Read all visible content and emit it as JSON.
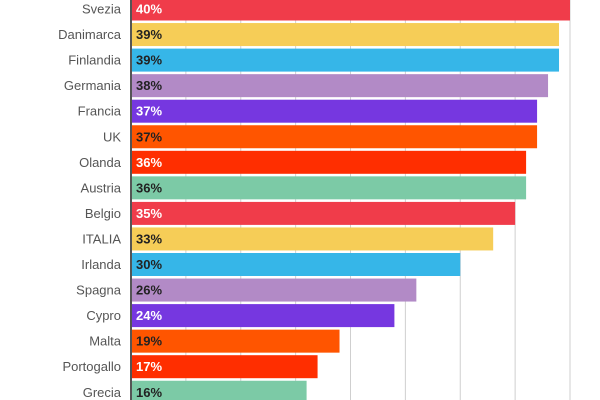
{
  "chart_data": {
    "type": "bar",
    "orientation": "horizontal",
    "categories": [
      "Svezia",
      "Danimarca",
      "Finlandia",
      "Germania",
      "Francia",
      "UK",
      "Olanda",
      "Austria",
      "Belgio",
      "ITALIA",
      "Irlanda",
      "Spagna",
      "Cypro",
      "Malta",
      "Portogallo",
      "Grecia"
    ],
    "values": [
      40,
      39,
      39,
      38,
      37,
      37,
      36,
      36,
      35,
      33,
      30,
      26,
      24,
      19,
      17,
      16
    ],
    "data_labels": [
      "40%",
      "39%",
      "39%",
      "38%",
      "37%",
      "37%",
      "36%",
      "36%",
      "35%",
      "33%",
      "30%",
      "26%",
      "24%",
      "19%",
      "17%",
      "16%"
    ],
    "colors": [
      "#F03C4A",
      "#F6CD57",
      "#36B6E8",
      "#B28AC6",
      "#7637E0",
      "#FF5500",
      "#FF2E00",
      "#7CCAA6",
      "#F03C4A",
      "#F6CD57",
      "#36B6E8",
      "#B28AC6",
      "#7637E0",
      "#FF5500",
      "#FF2E00",
      "#7CCAA6"
    ],
    "label_colors": [
      "#ffffff",
      "#222222",
      "#222222",
      "#222222",
      "#ffffff",
      "#222222",
      "#ffffff",
      "#222222",
      "#ffffff",
      "#222222",
      "#222222",
      "#222222",
      "#ffffff",
      "#222222",
      "#ffffff",
      "#222222"
    ],
    "title": "",
    "xlabel": "",
    "ylabel": "",
    "xlim": [
      0,
      42.75
    ],
    "grid": true,
    "grid_step": 5
  }
}
